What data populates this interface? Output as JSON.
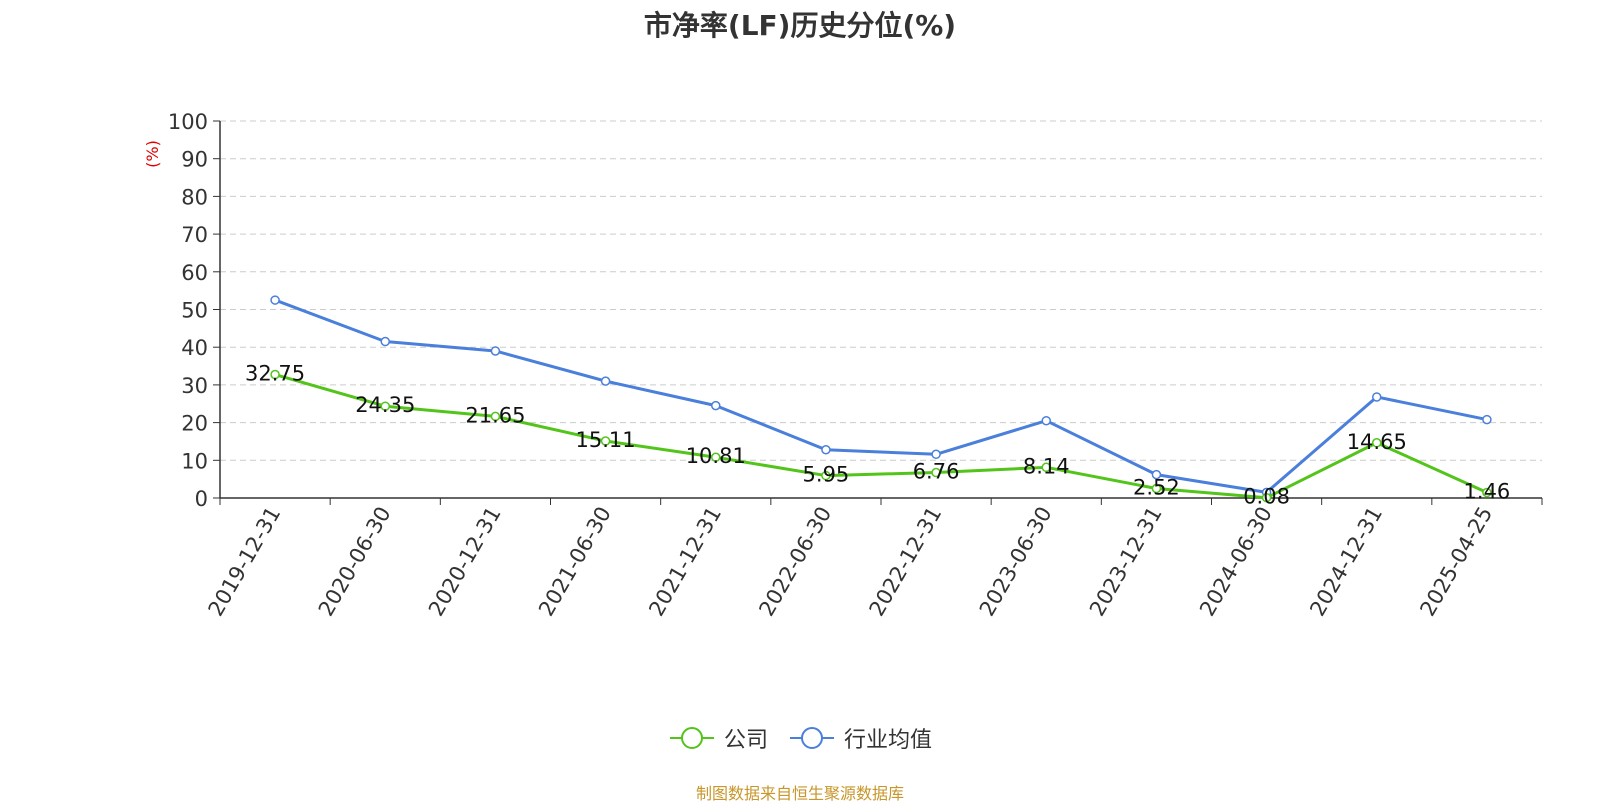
{
  "chart_data": {
    "type": "line",
    "title": "市净率(LF)历史分位(%)",
    "ylabel": "(%)",
    "xlabel": "",
    "categories": [
      "2019-12-31",
      "2020-06-30",
      "2020-12-31",
      "2021-06-30",
      "2021-12-31",
      "2022-06-30",
      "2022-12-31",
      "2023-06-30",
      "2023-12-31",
      "2024-06-30",
      "2024-12-31",
      "2025-04-25"
    ],
    "ylim": [
      0,
      100
    ],
    "yticks": [
      0,
      10,
      20,
      30,
      40,
      50,
      60,
      70,
      80,
      90,
      100
    ],
    "grid": true,
    "legend_position": "bottom",
    "series": [
      {
        "name": "公司",
        "color": "#52c41a",
        "values": [
          32.75,
          24.35,
          21.65,
          15.11,
          10.81,
          5.95,
          6.76,
          8.14,
          2.52,
          0.08,
          14.65,
          1.46
        ],
        "labels": [
          "32.75",
          "24.35",
          "21.65",
          "15.11",
          "10.81",
          "5.95",
          "6.76",
          "8.14",
          "2.52",
          "0.08",
          "14.65",
          "1.46"
        ]
      },
      {
        "name": "行业均值",
        "color": "#4a7fdb",
        "values": [
          52.5,
          41.5,
          39.0,
          31.0,
          24.5,
          12.8,
          11.6,
          20.5,
          6.2,
          1.5,
          26.8,
          20.8
        ]
      }
    ],
    "source": "制图数据来自恒生聚源数据库"
  }
}
